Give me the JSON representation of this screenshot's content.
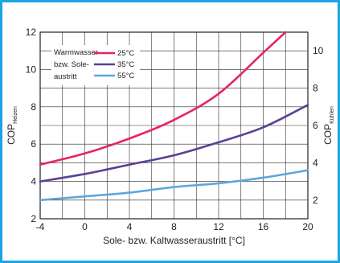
{
  "chart_data": {
    "type": "line",
    "xlabel": "Sole- bzw. Kaltwasseraustritt [°C]",
    "ylabel_left": {
      "main": "COP",
      "sub": "Heizen"
    },
    "ylabel_right": {
      "main": "COP",
      "sub": "Kühlen"
    },
    "xlim": [
      -4,
      20
    ],
    "ylim_left": [
      2,
      12
    ],
    "ylim_right": [
      1,
      11
    ],
    "x_ticks": [
      "-4",
      "0",
      "4",
      "8",
      "12",
      "16",
      "20"
    ],
    "y_ticks_left": [
      "2",
      "4",
      "6",
      "8",
      "10",
      "12"
    ],
    "y_ticks_right": [
      "2",
      "4",
      "6",
      "8",
      "10"
    ],
    "legend_title": [
      "Warmwasser-",
      "bzw. Sole-",
      "austritt"
    ],
    "legend_position": "top-left",
    "grid": true,
    "series": [
      {
        "name": "25°C",
        "color": "#e8245e",
        "x": [
          -4,
          0,
          4,
          8,
          12,
          16,
          18
        ],
        "y": [
          4.9,
          5.5,
          6.3,
          7.3,
          8.7,
          10.9,
          12.0
        ]
      },
      {
        "name": "35°C",
        "color": "#5b3f97",
        "x": [
          -4,
          0,
          4,
          8,
          12,
          16,
          20
        ],
        "y": [
          4.0,
          4.4,
          4.9,
          5.4,
          6.1,
          6.9,
          8.1
        ]
      },
      {
        "name": "55°C",
        "color": "#5ea6dc",
        "x": [
          -4,
          0,
          4,
          8,
          12,
          16,
          20
        ],
        "y": [
          3.0,
          3.2,
          3.4,
          3.7,
          3.9,
          4.2,
          4.6
        ]
      }
    ]
  }
}
